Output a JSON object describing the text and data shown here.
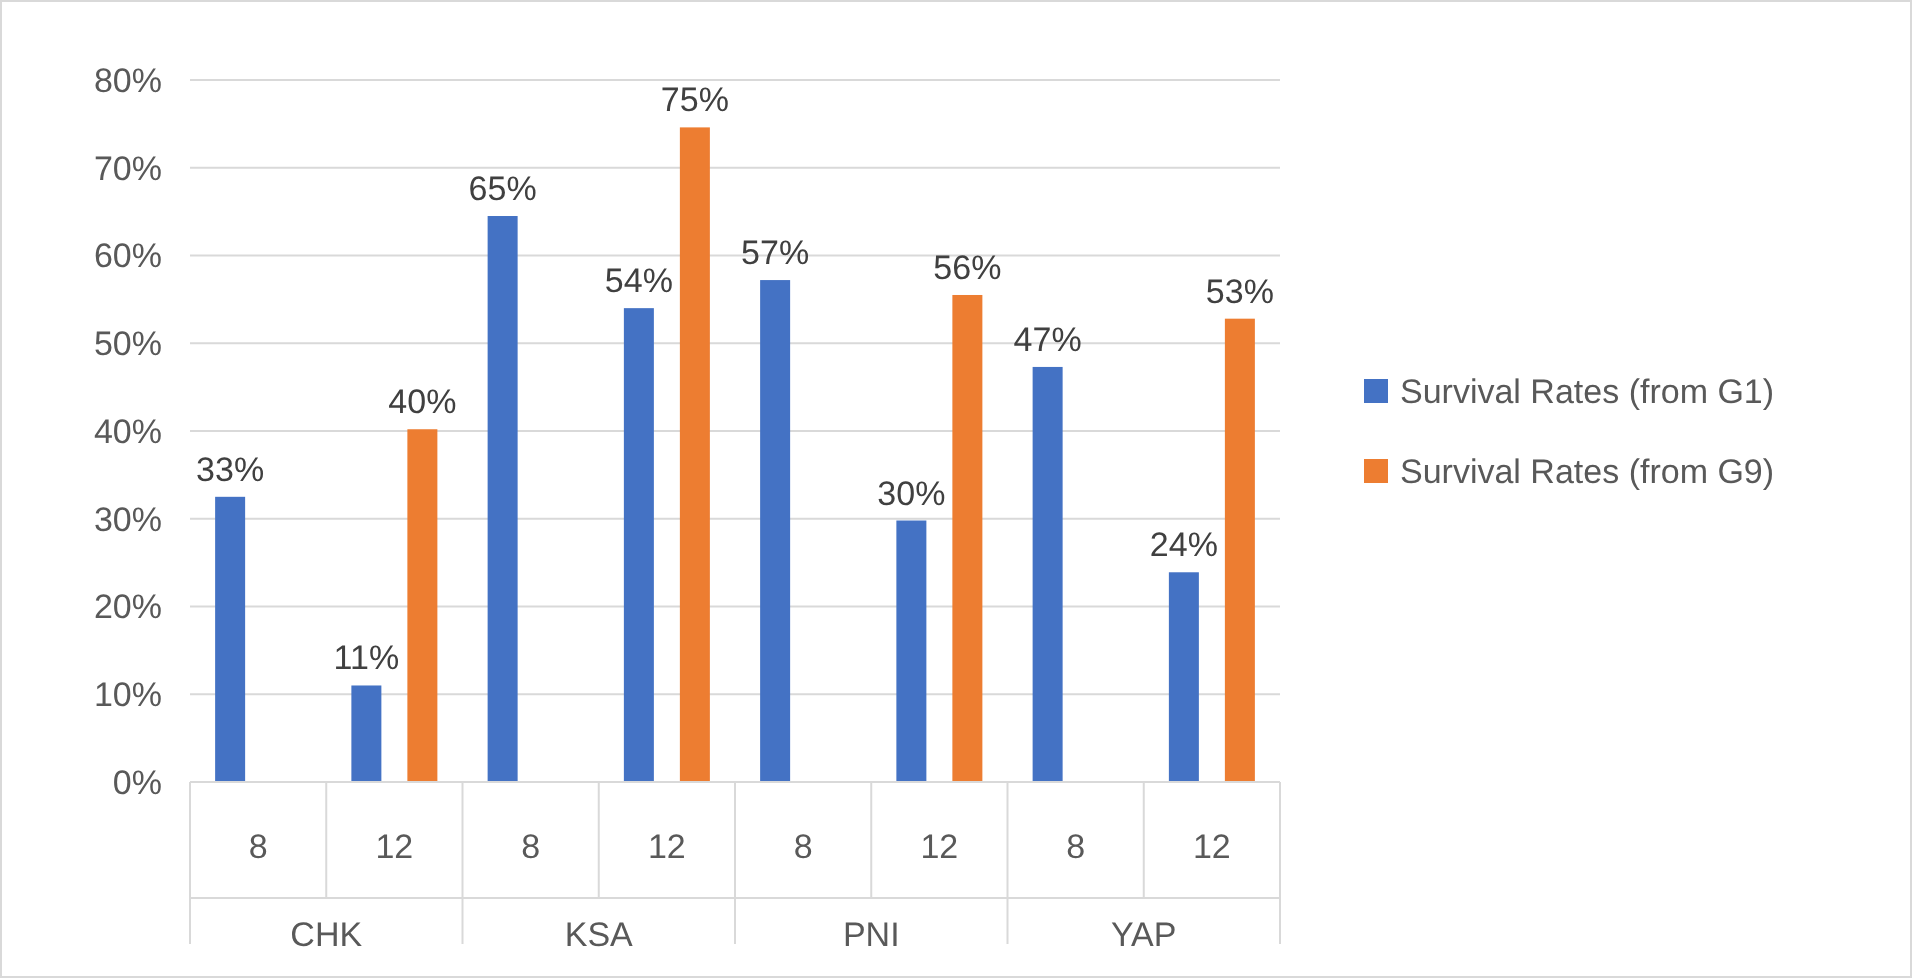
{
  "chart_data": {
    "type": "bar",
    "categories": [
      "8",
      "12",
      "8",
      "12",
      "8",
      "12",
      "8",
      "12"
    ],
    "annotations": [
      "CHK",
      "KSA",
      "PNI",
      "YAP"
    ],
    "series": [
      {
        "name": "Survival Rates (from G1)",
        "color": "#4472c4",
        "values": [
          32.5,
          11,
          64.5,
          54,
          57.2,
          29.8,
          47.3,
          23.9
        ],
        "value_labels": [
          "33%",
          "11%",
          "65%",
          "54%",
          "57%",
          "30%",
          "47%",
          "24%"
        ]
      },
      {
        "name": "Survival Rates (from G9)",
        "color": "#ed7d31",
        "values": [
          null,
          40.2,
          null,
          74.6,
          null,
          55.5,
          null,
          52.8
        ],
        "value_labels": [
          null,
          "40%",
          null,
          "75%",
          null,
          "56%",
          null,
          "53%"
        ]
      }
    ],
    "ylim": [
      0,
      80
    ],
    "yticks": [
      {
        "value": 0,
        "label": "0%"
      },
      {
        "value": 10,
        "label": "10%"
      },
      {
        "value": 20,
        "label": "20%"
      },
      {
        "value": 30,
        "label": "30%"
      },
      {
        "value": 40,
        "label": "40%"
      },
      {
        "value": 50,
        "label": "50%"
      },
      {
        "value": 60,
        "label": "60%"
      },
      {
        "value": 70,
        "label": "70%"
      },
      {
        "value": 80,
        "label": "80%"
      }
    ],
    "grid": "y",
    "legend": "right"
  }
}
